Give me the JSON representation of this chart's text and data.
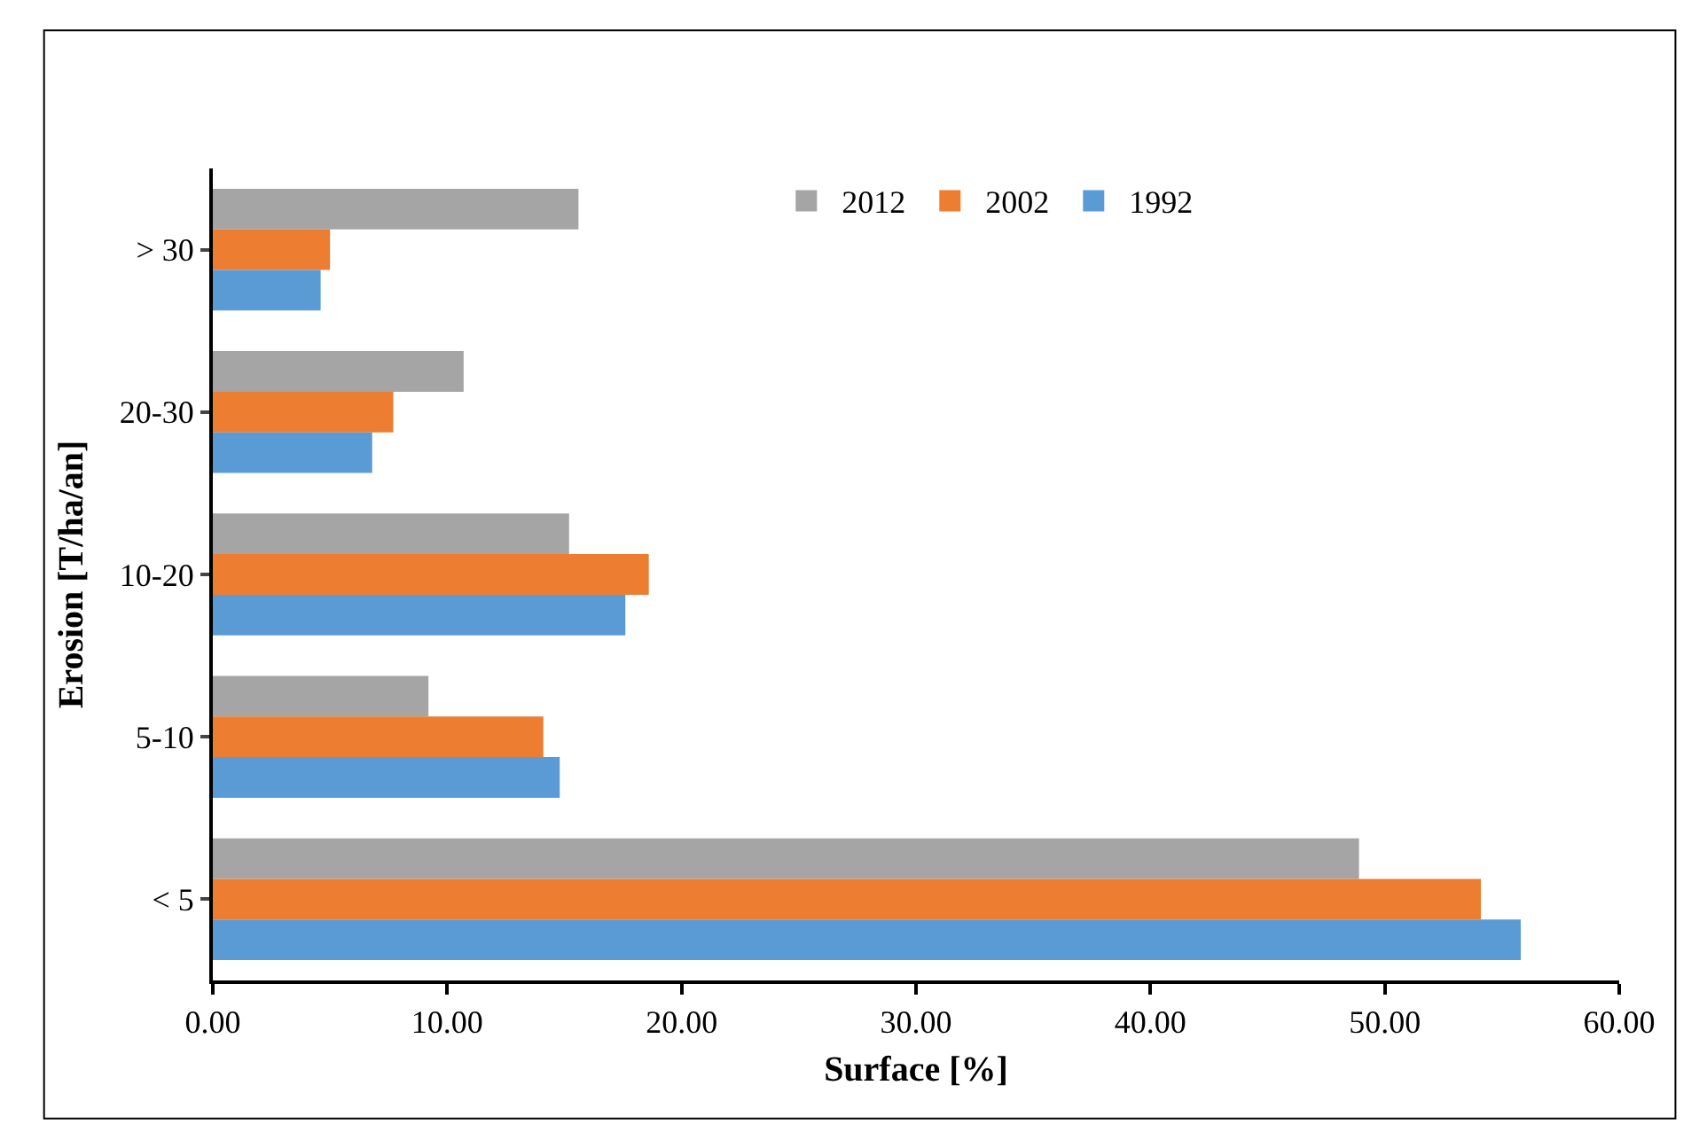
{
  "chart_data": {
    "type": "bar",
    "orientation": "horizontal",
    "xlabel": "Surface [%]",
    "ylabel": "Erosion [T/ha/an]",
    "categories": [
      "> 30",
      "20-30",
      "10-20",
      "5-10",
      "< 5"
    ],
    "series": [
      {
        "name": "2012",
        "color": "#a5a5a5",
        "values": [
          15.6,
          10.7,
          15.2,
          9.2,
          48.9
        ]
      },
      {
        "name": "2002",
        "color": "#ed7d31",
        "values": [
          5.0,
          7.7,
          18.6,
          14.1,
          54.1
        ]
      },
      {
        "name": "1992",
        "color": "#5b9bd5",
        "values": [
          4.6,
          6.8,
          17.6,
          14.8,
          55.8
        ]
      }
    ],
    "xlim": [
      0,
      60
    ],
    "xticks": [
      {
        "value": 0,
        "label": "0.00"
      },
      {
        "value": 10,
        "label": "10.00"
      },
      {
        "value": 20,
        "label": "20.00"
      },
      {
        "value": 30,
        "label": "30.00"
      },
      {
        "value": 40,
        "label": "40.00"
      },
      {
        "value": 50,
        "label": "50.00"
      },
      {
        "value": 60,
        "label": "60.00"
      }
    ],
    "legend": "top"
  }
}
